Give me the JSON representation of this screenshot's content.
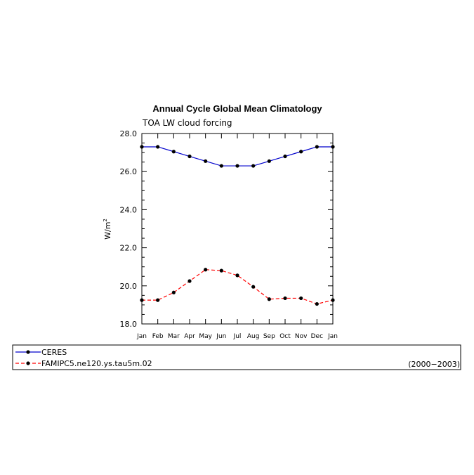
{
  "chart_data": {
    "type": "line",
    "title": "Annual Cycle Global Mean Climatology",
    "subtitle": "TOA LW cloud forcing",
    "ylabel": "W/m",
    "ylabel_superscript": "2",
    "ylim": [
      18.0,
      28.0
    ],
    "y_ticks": [
      "18.0",
      "20.0",
      "22.0",
      "24.0",
      "26.0",
      "28.0"
    ],
    "categories": [
      "Jan",
      "Feb",
      "Mar",
      "Apr",
      "May",
      "Jun",
      "Jul",
      "Aug",
      "Sep",
      "Oct",
      "Nov",
      "Dec",
      "Jan"
    ],
    "series": [
      {
        "name": "CERES",
        "color": "#0000cc",
        "dash": "solid",
        "values": [
          27.3,
          27.3,
          27.05,
          26.8,
          26.55,
          26.3,
          26.3,
          26.3,
          26.55,
          26.8,
          27.05,
          27.3,
          27.3
        ]
      },
      {
        "name": "FAMIPC5.ne120.ys.tau5m.02",
        "color": "#ff0000",
        "dash": "dashed",
        "values": [
          19.25,
          19.25,
          19.65,
          20.25,
          20.85,
          20.8,
          20.55,
          19.95,
          19.3,
          19.35,
          19.35,
          19.05,
          19.25
        ]
      }
    ],
    "period": "(2000−2003)",
    "grid": false,
    "legend_position": "bottom"
  }
}
